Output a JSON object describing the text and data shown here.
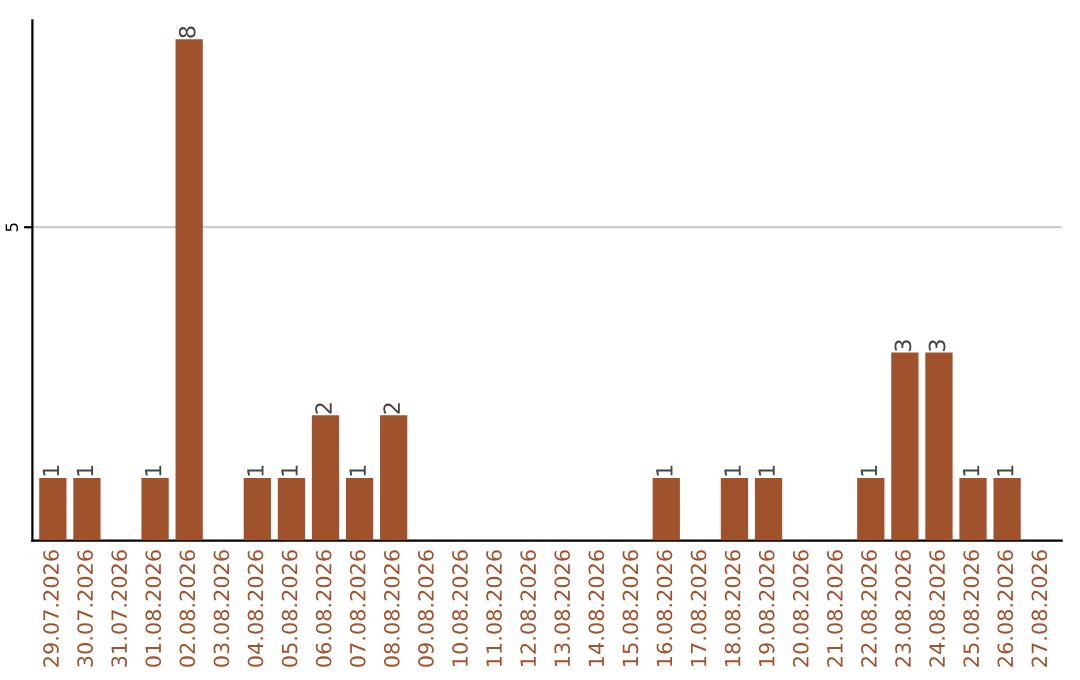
{
  "chart_data": {
    "type": "bar",
    "categories": [
      "29.07.2026",
      "30.07.2026",
      "31.07.2026",
      "01.08.2026",
      "02.08.2026",
      "03.08.2026",
      "04.08.2026",
      "05.08.2026",
      "06.08.2026",
      "07.08.2026",
      "08.08.2026",
      "09.08.2026",
      "10.08.2026",
      "11.08.2026",
      "12.08.2026",
      "13.08.2026",
      "14.08.2026",
      "15.08.2026",
      "16.08.2026",
      "17.08.2026",
      "18.08.2026",
      "19.08.2026",
      "20.08.2026",
      "21.08.2026",
      "22.08.2026",
      "23.08.2026",
      "24.08.2026",
      "25.08.2026",
      "26.08.2026",
      "27.08.2026"
    ],
    "values": [
      1,
      1,
      0,
      1,
      8,
      0,
      1,
      1,
      2,
      1,
      2,
      0,
      0,
      0,
      0,
      0,
      0,
      0,
      1,
      0,
      1,
      1,
      0,
      0,
      1,
      3,
      3,
      1,
      1,
      0
    ],
    "value_labels": [
      "1",
      "1",
      null,
      "1",
      "8",
      null,
      "1",
      "1",
      "2",
      "1",
      "2",
      null,
      null,
      null,
      null,
      null,
      null,
      null,
      "1",
      null,
      "1",
      "1",
      null,
      null,
      "1",
      "3",
      "3",
      "1",
      "1",
      null
    ],
    "color": "#a0522d",
    "ylim": [
      0,
      8.3
    ],
    "yticks": [
      5
    ],
    "grid": "y"
  }
}
